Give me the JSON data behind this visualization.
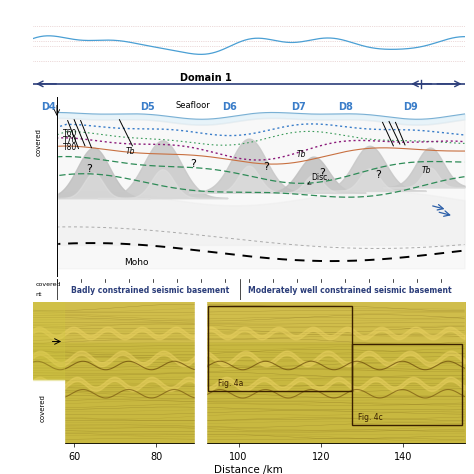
{
  "domain1_label": "Domain 1",
  "seafloor_label": "Seafloor",
  "moho_label": "Moho",
  "domains": [
    "D4",
    "D5",
    "D6",
    "D7",
    "D8",
    "D9"
  ],
  "domain_x": [
    0.035,
    0.265,
    0.455,
    0.615,
    0.725,
    0.875
  ],
  "xlabel": "Distance /km",
  "xticks": [
    60,
    80,
    100,
    120,
    140
  ],
  "badly_label": "Badly constrained seismic basement",
  "moderately_label": "Moderately well constrained seismic basement",
  "fig4a_label": "Fig. 4a",
  "fig4c_label": "Fig. 4c",
  "bar_bg": "#d4c9a0",
  "interp_bg": "#f0ede0",
  "label_bar_bg": "#e8d9b8",
  "blue_line": "#3a7dc9",
  "purple_line": "#8b1a7a",
  "red_line": "#c0392b",
  "green_line": "#2e8b57",
  "dark_blue": "#2c3e7a"
}
